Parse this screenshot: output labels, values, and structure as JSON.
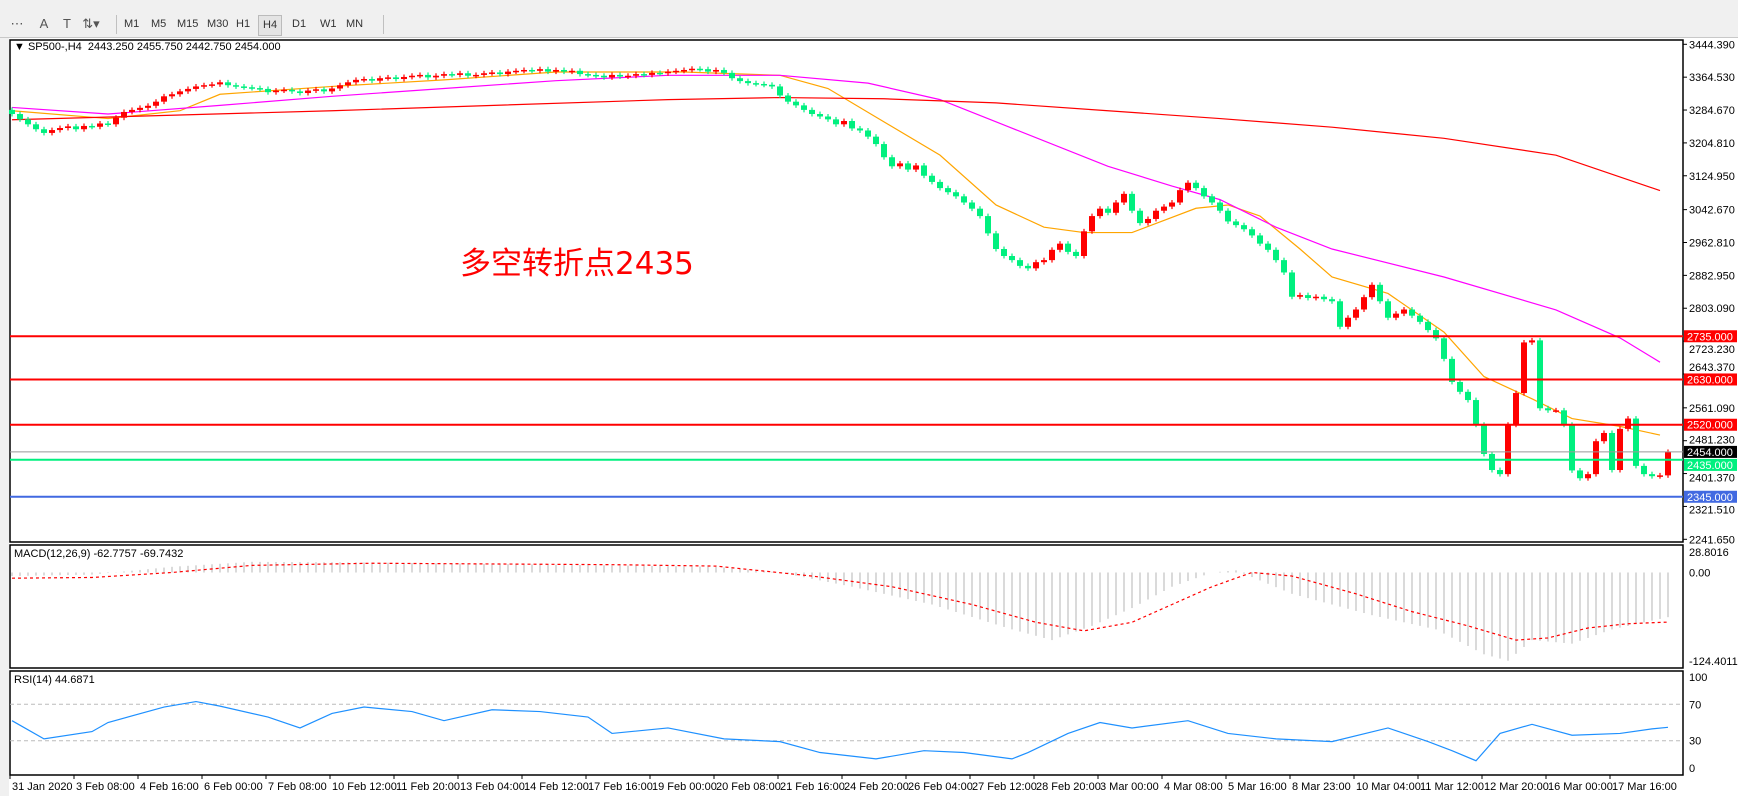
{
  "toolbar": {
    "timeframes": [
      "M1",
      "M5",
      "M15",
      "M30",
      "H1",
      "H4",
      "D1",
      "W1",
      "MN"
    ],
    "active_timeframe": "H4",
    "icons": [
      "crosshair-period-icon",
      "text-icon",
      "text-label-icon",
      "arrows-icon"
    ]
  },
  "header": {
    "symbol": "SP500-,H4",
    "ohlc": "2443.250 2455.750 2442.750 2454.000"
  },
  "annotation": "多空转折点2435",
  "colors": {
    "bull": "#ff0000",
    "bear": "#00f07f",
    "ma_fast": "#ffa500",
    "ma_mid": "#ff00ff",
    "ma_slow": "#ff0000",
    "rsi": "#1e90ff",
    "macd_hist": "#c0c0c0",
    "macd_signal": "#ff0000"
  },
  "chart_data": [
    {
      "type": "candlestick",
      "title": "SP500-,H4",
      "ylim": [
        2241.65,
        3444.39
      ],
      "price_ticks": [
        "3444.390",
        "3364.530",
        "3284.670",
        "3204.810",
        "3124.950",
        "3042.670",
        "2962.810",
        "2882.950",
        "2803.090",
        "2723.230",
        "2643.370",
        "2561.090",
        "2481.230",
        "2401.370",
        "2321.510",
        "2241.650"
      ],
      "time_labels": [
        "31 Jan 2020",
        "3 Feb 08:00",
        "4 Feb 16:00",
        "6 Feb 00:00",
        "7 Feb 08:00",
        "10 Feb 12:00",
        "11 Feb 20:00",
        "13 Feb 04:00",
        "14 Feb 12:00",
        "17 Feb 16:00",
        "19 Feb 00:00",
        "20 Feb 08:00",
        "21 Feb 16:00",
        "24 Feb 20:00",
        "26 Feb 04:00",
        "27 Feb 12:00",
        "28 Feb 20:00",
        "3 Mar 00:00",
        "4 Mar 08:00",
        "5 Mar 16:00",
        "8 Mar 23:00",
        "10 Mar 04:00",
        "11 Mar 12:00",
        "12 Mar 20:00",
        "16 Mar 00:00",
        "17 Mar 16:00"
      ],
      "first_open": 3285,
      "closes": [
        3275,
        3262,
        3250,
        3238,
        3229,
        3236,
        3241,
        3245,
        3238,
        3246,
        3244,
        3252,
        3250,
        3266,
        3280,
        3285,
        3290,
        3295,
        3305,
        3318,
        3323,
        3330,
        3336,
        3342,
        3345,
        3347,
        3352,
        3345,
        3342,
        3340,
        3338,
        3336,
        3328,
        3332,
        3334,
        3330,
        3326,
        3332,
        3335,
        3330,
        3337,
        3345,
        3352,
        3358,
        3360,
        3356,
        3362,
        3364,
        3360,
        3365,
        3368,
        3370,
        3364,
        3368,
        3372,
        3370,
        3374,
        3368,
        3370,
        3374,
        3376,
        3372,
        3378,
        3380,
        3382,
        3380,
        3384,
        3378,
        3382,
        3378,
        3380,
        3372,
        3370,
        3368,
        3364,
        3370,
        3366,
        3368,
        3372,
        3370,
        3375,
        3374,
        3378,
        3380,
        3382,
        3385,
        3384,
        3378,
        3382,
        3375,
        3362,
        3355,
        3350,
        3348,
        3346,
        3342,
        3320,
        3305,
        3296,
        3285,
        3275,
        3269,
        3262,
        3250,
        3258,
        3240,
        3235,
        3220,
        3202,
        3170,
        3148,
        3155,
        3140,
        3150,
        3125,
        3110,
        3095,
        3085,
        3075,
        3060,
        3045,
        3027,
        2985,
        2947,
        2930,
        2920,
        2906,
        2900,
        2915,
        2920,
        2945,
        2960,
        2940,
        2930,
        2990,
        3027,
        3045,
        3035,
        3060,
        3081,
        3040,
        3010,
        3020,
        3040,
        3050,
        3060,
        3090,
        3108,
        3095,
        3075,
        3060,
        3040,
        3014,
        3005,
        2995,
        2980,
        2960,
        2945,
        2920,
        2890,
        2831,
        2835,
        2828,
        2831,
        2825,
        2820,
        2758,
        2780,
        2800,
        2830,
        2860,
        2820,
        2780,
        2790,
        2800,
        2785,
        2770,
        2750,
        2730,
        2680,
        2624,
        2600,
        2580,
        2520,
        2449,
        2410,
        2400,
        2520,
        2597,
        2720,
        2725,
        2560,
        2555,
        2555,
        2520,
        2409,
        2390,
        2400,
        2480,
        2500,
        2410,
        2510,
        2535,
        2420,
        2400,
        2395,
        2397,
        2454
      ],
      "moving_averages": [
        {
          "key": "ma_fast",
          "points": [
            [
              0,
              3283
            ],
            [
              12,
              3264
            ],
            [
              21,
              3283
            ],
            [
              26,
              3323
            ],
            [
              40,
              3342
            ],
            [
              54,
              3358
            ],
            [
              68,
              3377
            ],
            [
              84,
              3377
            ],
            [
              96,
              3369
            ],
            [
              102,
              3337
            ],
            [
              109,
              3256
            ],
            [
              116,
              3175
            ],
            [
              123,
              3054
            ],
            [
              129,
              3000
            ],
            [
              134,
              2987
            ],
            [
              140,
              2987
            ],
            [
              148,
              3046
            ],
            [
              152,
              3054
            ],
            [
              156,
              3027
            ],
            [
              161,
              2947
            ],
            [
              165,
              2879
            ],
            [
              172,
              2839
            ],
            [
              179,
              2745
            ],
            [
              184,
              2637
            ],
            [
              190,
              2583
            ],
            [
              195,
              2535
            ],
            [
              201,
              2516
            ],
            [
              206,
              2495
            ]
          ]
        },
        {
          "key": "ma_mid",
          "points": [
            [
              0,
              3291
            ],
            [
              12,
              3275
            ],
            [
              26,
              3296
            ],
            [
              40,
              3318
            ],
            [
              54,
              3337
            ],
            [
              68,
              3356
            ],
            [
              82,
              3369
            ],
            [
              96,
              3369
            ],
            [
              107,
              3350
            ],
            [
              116,
              3310
            ],
            [
              123,
              3256
            ],
            [
              137,
              3148
            ],
            [
              145,
              3100
            ],
            [
              151,
              3067
            ],
            [
              158,
              3000
            ],
            [
              165,
              2947
            ],
            [
              179,
              2879
            ],
            [
              193,
              2799
            ],
            [
              201,
              2731
            ],
            [
              206,
              2672
            ]
          ]
        },
        {
          "key": "ma_slow",
          "points": [
            [
              0,
              3261
            ],
            [
              40,
              3283
            ],
            [
              82,
              3310
            ],
            [
              96,
              3315
            ],
            [
              109,
              3312
            ],
            [
              123,
              3302
            ],
            [
              137,
              3283
            ],
            [
              151,
              3264
            ],
            [
              165,
              3243
            ],
            [
              179,
              3216
            ],
            [
              193,
              3175
            ],
            [
              206,
              3089
            ]
          ]
        }
      ],
      "levels": [
        {
          "price": 2735,
          "label": "2735.000",
          "color": "#ff0000"
        },
        {
          "price": 2630,
          "label": "2630.000",
          "color": "#ff0000"
        },
        {
          "price": 2520,
          "label": "2520.000",
          "color": "#ff0000"
        },
        {
          "price": 2435,
          "label": "2435.000",
          "color": "#00f07f"
        },
        {
          "price": 2345,
          "label": "2345.000",
          "color": "#4169e1"
        }
      ],
      "current_price": {
        "price": 2454,
        "label": "2454.000"
      }
    },
    {
      "type": "bar+line",
      "title": "MACD(12,26,9) -62.7757 -69.7432",
      "ylim": [
        -124.4011,
        28.8016
      ],
      "ticks": [
        "28.8016",
        "0.00",
        "-124.4011"
      ],
      "macd_points": [
        [
          0,
          -5
        ],
        [
          10,
          -3
        ],
        [
          20,
          8
        ],
        [
          30,
          15
        ],
        [
          45,
          14
        ],
        [
          60,
          12
        ],
        [
          75,
          10
        ],
        [
          88,
          8
        ],
        [
          96,
          0
        ],
        [
          105,
          -20
        ],
        [
          115,
          -45
        ],
        [
          125,
          -80
        ],
        [
          130,
          -95
        ],
        [
          135,
          -75
        ],
        [
          140,
          -50
        ],
        [
          145,
          -20
        ],
        [
          150,
          0
        ],
        [
          153,
          3
        ],
        [
          160,
          -30
        ],
        [
          170,
          -60
        ],
        [
          178,
          -80
        ],
        [
          184,
          -115
        ],
        [
          187,
          -124
        ],
        [
          190,
          -95
        ],
        [
          195,
          -100
        ],
        [
          200,
          -80
        ],
        [
          207,
          -62.78
        ]
      ],
      "signal_points": [
        [
          0,
          -8
        ],
        [
          10,
          -7
        ],
        [
          20,
          0
        ],
        [
          30,
          10
        ],
        [
          45,
          13
        ],
        [
          60,
          12
        ],
        [
          75,
          11
        ],
        [
          88,
          9
        ],
        [
          100,
          -5
        ],
        [
          110,
          -20
        ],
        [
          120,
          -45
        ],
        [
          128,
          -70
        ],
        [
          134,
          -82
        ],
        [
          140,
          -70
        ],
        [
          145,
          -45
        ],
        [
          150,
          -20
        ],
        [
          155,
          0
        ],
        [
          160,
          -5
        ],
        [
          168,
          -30
        ],
        [
          175,
          -55
        ],
        [
          182,
          -75
        ],
        [
          188,
          -95
        ],
        [
          192,
          -92
        ],
        [
          197,
          -78
        ],
        [
          202,
          -72
        ],
        [
          207,
          -69.74
        ]
      ]
    },
    {
      "type": "line",
      "title": "RSI(14) 44.6871",
      "ylim": [
        0,
        100
      ],
      "ticks": [
        "100",
        "70",
        "30",
        "0"
      ],
      "levels": [
        70,
        30
      ],
      "points": [
        [
          0,
          52
        ],
        [
          4,
          32
        ],
        [
          10,
          40
        ],
        [
          12,
          50
        ],
        [
          19,
          67
        ],
        [
          23,
          73
        ],
        [
          26,
          68
        ],
        [
          32,
          56
        ],
        [
          36,
          44
        ],
        [
          40,
          60
        ],
        [
          44,
          67
        ],
        [
          50,
          62
        ],
        [
          54,
          52
        ],
        [
          60,
          64
        ],
        [
          66,
          62
        ],
        [
          72,
          56
        ],
        [
          75,
          38
        ],
        [
          82,
          44
        ],
        [
          89,
          32
        ],
        [
          96,
          29
        ],
        [
          101,
          17
        ],
        [
          108,
          10
        ],
        [
          114,
          19
        ],
        [
          119,
          17
        ],
        [
          125,
          10
        ],
        [
          127,
          17
        ],
        [
          132,
          38
        ],
        [
          136,
          50
        ],
        [
          140,
          44
        ],
        [
          147,
          52
        ],
        [
          152,
          38
        ],
        [
          158,
          32
        ],
        [
          165,
          29
        ],
        [
          172,
          44
        ],
        [
          177,
          29
        ],
        [
          180,
          19
        ],
        [
          183,
          8
        ],
        [
          186,
          38
        ],
        [
          190,
          48
        ],
        [
          195,
          36
        ],
        [
          201,
          38
        ],
        [
          205,
          43
        ],
        [
          207,
          44.69
        ]
      ]
    }
  ]
}
